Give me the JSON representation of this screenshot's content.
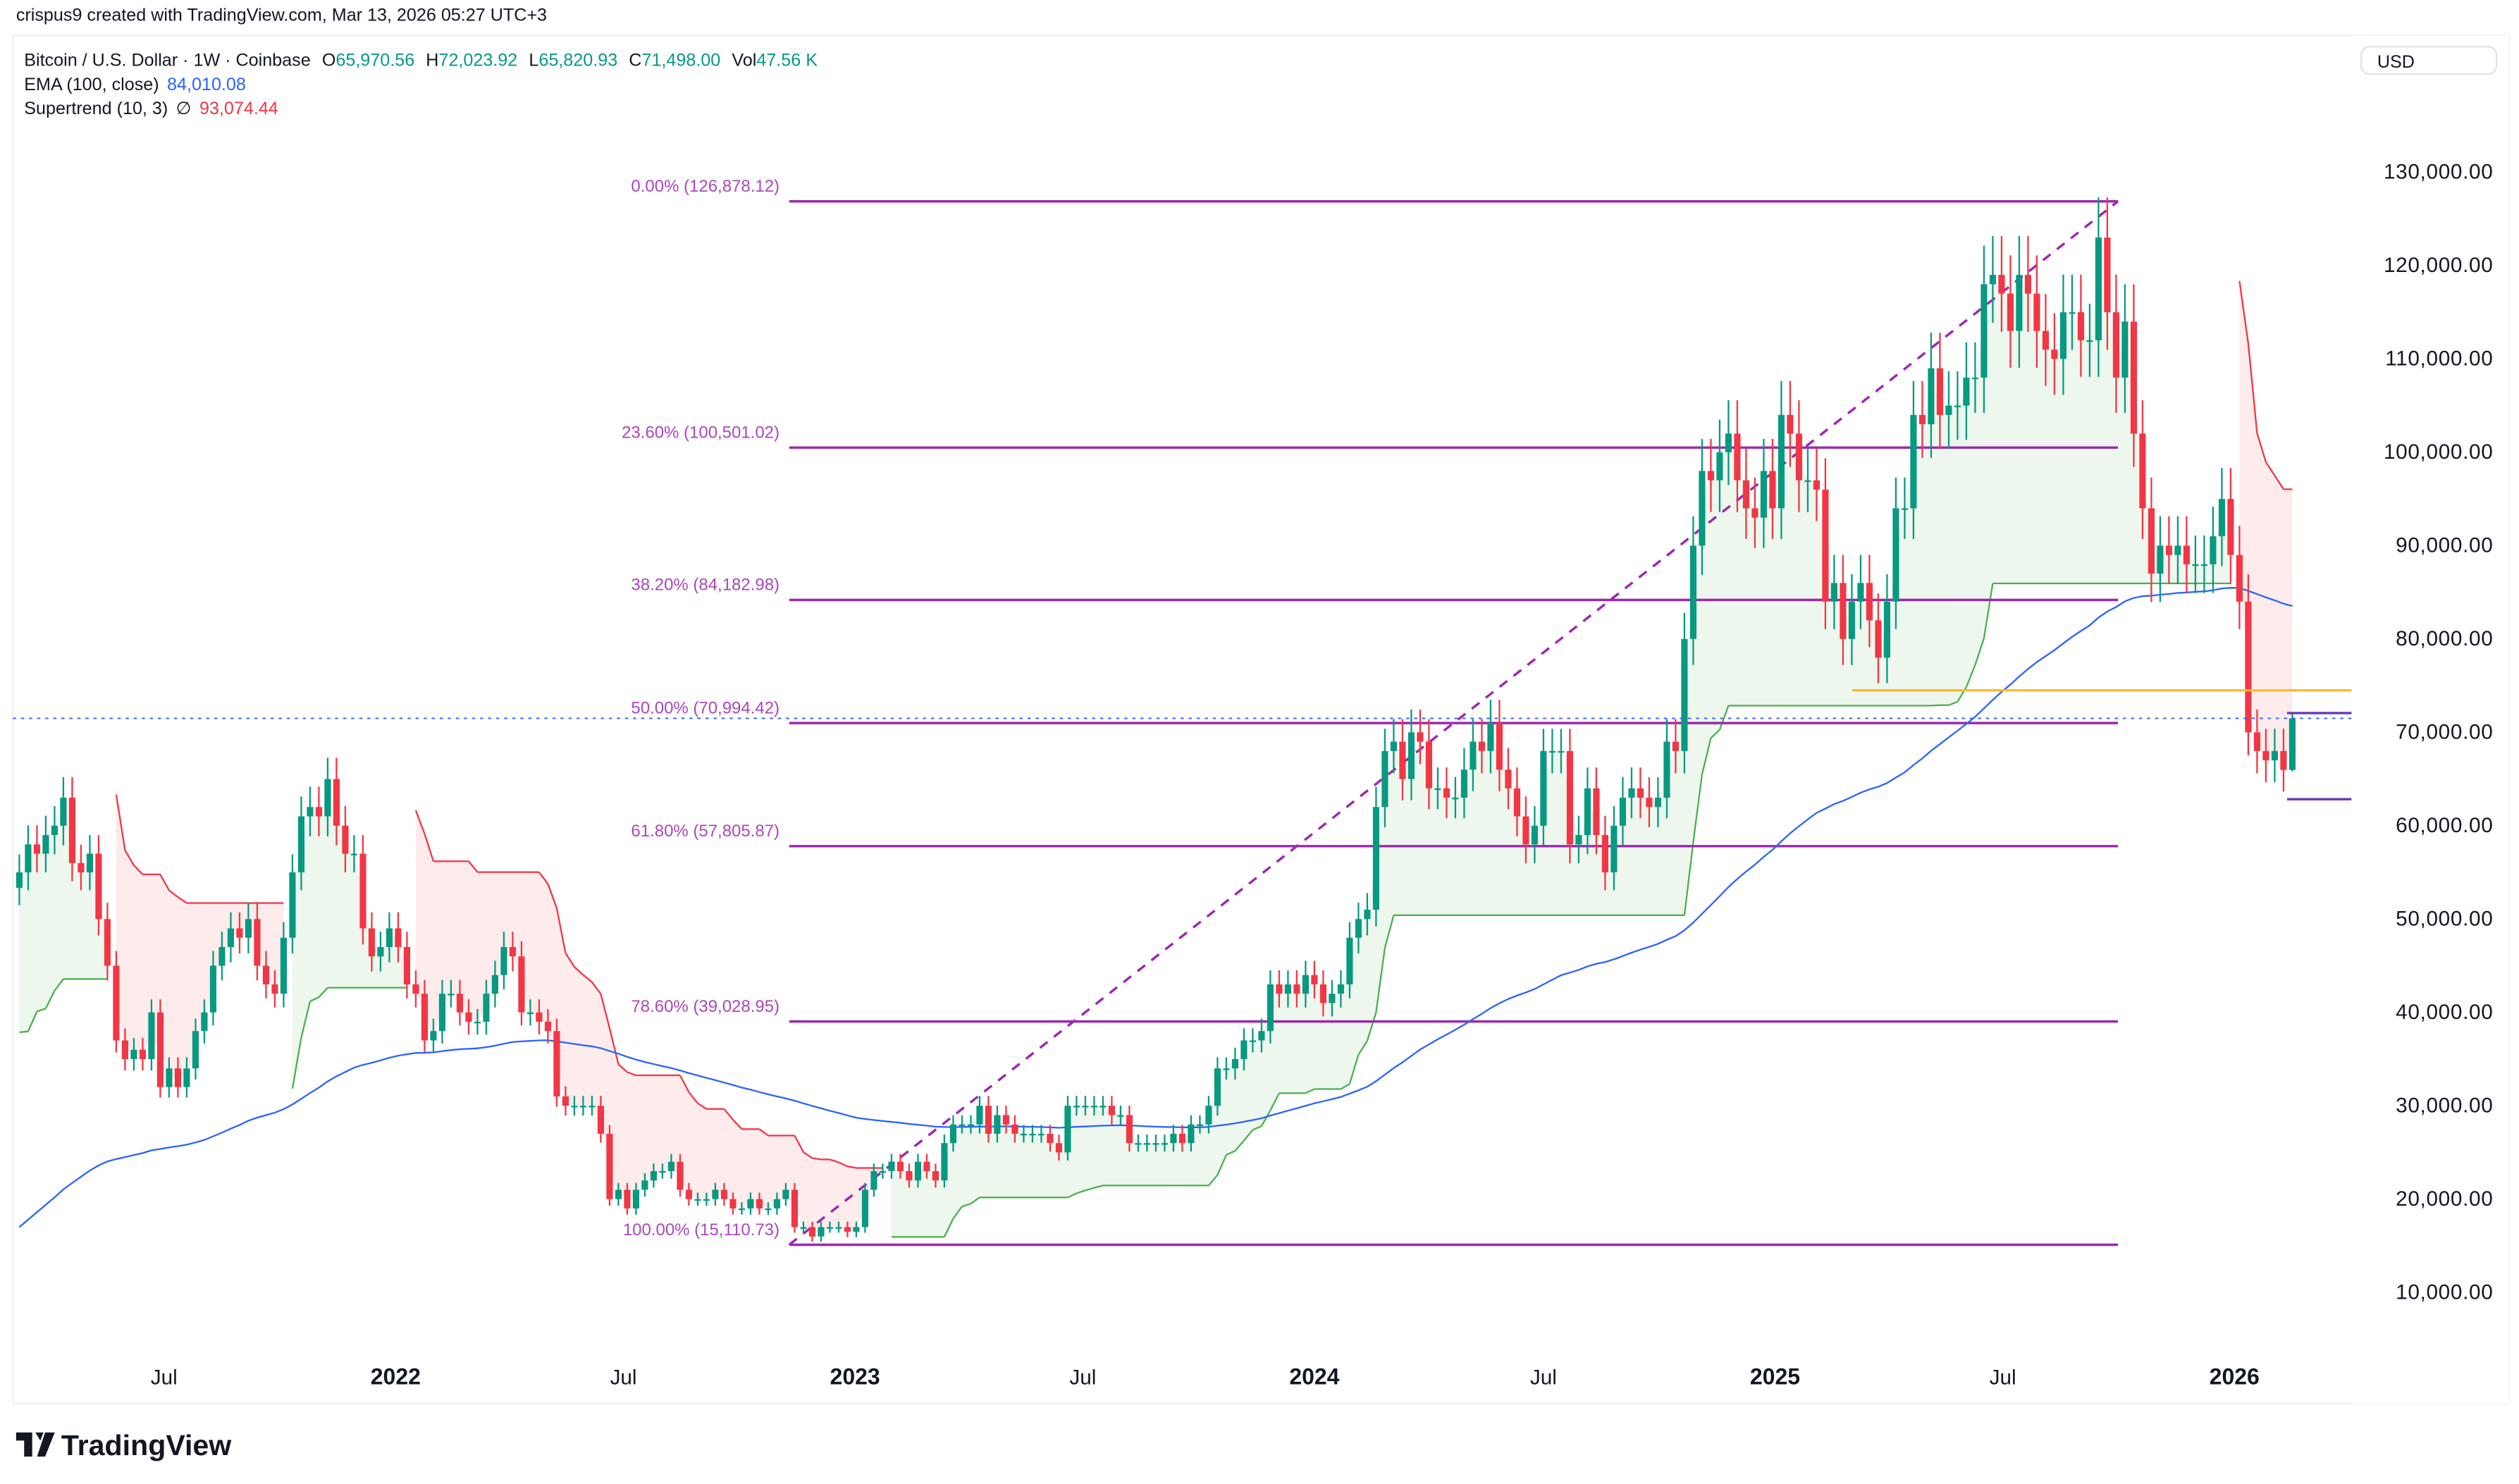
{
  "header": {
    "credit": "crispus9 created with TradingView.com, Mar 13, 2026 05:27 UTC+3"
  },
  "legend": {
    "symbol": "Bitcoin / U.S. Dollar · 1W · Coinbase",
    "o_label": "O",
    "o": "65,970.56",
    "h_label": "H",
    "h": "72,023.92",
    "l_label": "L",
    "l": "65,820.93",
    "c_label": "C",
    "c": "71,498.00",
    "vol_label": "Vol",
    "vol": "47.56 K",
    "ema_label": "EMA (100, close)",
    "ema_value": "84,010.08",
    "st_label": "Supertrend (10, 3)",
    "st_symbol": "∅",
    "st_value": "93,074.44"
  },
  "currency_button": "USD",
  "logo": {
    "text": "TradingView"
  },
  "colors": {
    "up": "#089981",
    "down": "#f23645",
    "ema": "#2962ff",
    "fib": "#9c27b0",
    "fib_text": "#ab47bc",
    "level_orange": "#f9bc2c",
    "level_purple": "#673ab7",
    "st_up": "#4caf50",
    "st_down": "#f23645"
  },
  "chart_data": {
    "type": "candlestick",
    "interval": "1W",
    "first_bar": "2021-03-08",
    "ylim": [
      0,
      140000
    ],
    "y_ticks": [
      "130,000.00",
      "120,000.00",
      "110,000.00",
      "100,000.00",
      "90,000.00",
      "80,000.00",
      "70,000.00",
      "60,000.00",
      "50,000.00",
      "40,000.00",
      "30,000.00",
      "20,000.00",
      "10,000.00"
    ],
    "y_tick_values": [
      130000,
      120000,
      110000,
      100000,
      90000,
      80000,
      70000,
      60000,
      50000,
      40000,
      30000,
      20000,
      10000
    ],
    "x_ticks": [
      {
        "label": "Jul",
        "date": "2021-07-01",
        "bold": false
      },
      {
        "label": "2022",
        "date": "2022-01-01",
        "bold": true
      },
      {
        "label": "Jul",
        "date": "2022-07-01",
        "bold": false
      },
      {
        "label": "2023",
        "date": "2023-01-01",
        "bold": true
      },
      {
        "label": "Jul",
        "date": "2023-07-01",
        "bold": false
      },
      {
        "label": "2024",
        "date": "2024-01-01",
        "bold": true
      },
      {
        "label": "Jul",
        "date": "2024-07-01",
        "bold": false
      },
      {
        "label": "2025",
        "date": "2025-01-01",
        "bold": true
      },
      {
        "label": "Jul",
        "date": "2025-07-01",
        "bold": false
      },
      {
        "label": "2026",
        "date": "2026-01-01",
        "bold": true
      }
    ],
    "closes": [
      55000,
      58000,
      57000,
      59000,
      60000,
      63000,
      56000,
      55000,
      57000,
      50000,
      45000,
      37000,
      35000,
      36000,
      35000,
      40000,
      32000,
      34000,
      32000,
      34000,
      38000,
      40000,
      45000,
      47000,
      49000,
      48000,
      50000,
      45000,
      43000,
      42000,
      48000,
      55000,
      61000,
      62000,
      61000,
      65000,
      60000,
      57000,
      57000,
      49000,
      46000,
      47000,
      49000,
      47000,
      43000,
      42000,
      37000,
      38000,
      42000,
      42000,
      40000,
      39000,
      39000,
      42000,
      44000,
      47000,
      46000,
      40000,
      40000,
      39000,
      38000,
      31000,
      30000,
      30000,
      30000,
      30000,
      27000,
      20000,
      21000,
      19000,
      21000,
      22000,
      23000,
      23000,
      24000,
      21000,
      20000,
      20000,
      20000,
      21000,
      20000,
      19000,
      19000,
      20000,
      19000,
      19000,
      20000,
      21000,
      17000,
      17000,
      16000,
      17000,
      17000,
      17000,
      16500,
      17000,
      21000,
      23000,
      23000,
      24000,
      23000,
      22000,
      24000,
      23000,
      22000,
      26000,
      28000,
      28000,
      28000,
      30000,
      27000,
      29000,
      28000,
      27000,
      27000,
      27000,
      27000,
      26000,
      25000,
      30000,
      30000,
      30000,
      30000,
      30000,
      29000,
      29000,
      26000,
      26000,
      26000,
      26000,
      26000,
      27000,
      26000,
      28000,
      28000,
      30000,
      34000,
      34000,
      35000,
      37000,
      37000,
      38000,
      43000,
      42000,
      43000,
      42000,
      44000,
      43000,
      41000,
      42000,
      43000,
      48000,
      50000,
      51000,
      62000,
      68000,
      69000,
      65000,
      70000,
      69000,
      64000,
      64000,
      63000,
      63000,
      66000,
      69000,
      68000,
      71000,
      66000,
      64000,
      61000,
      58000,
      60000,
      68000,
      68000,
      68000,
      58000,
      59000,
      64000,
      59000,
      55000,
      60000,
      63000,
      64000,
      63000,
      62000,
      63000,
      69000,
      68000,
      80000,
      90000,
      98000,
      97000,
      100000,
      102000,
      97000,
      94000,
      93000,
      98000,
      94000,
      104000,
      102000,
      97000,
      97000,
      96000,
      84000,
      86000,
      80000,
      84000,
      86000,
      82000,
      78000,
      84000,
      94000,
      94000,
      104000,
      103000,
      109000,
      104000,
      105000,
      105000,
      108000,
      108000,
      118000,
      119000,
      117000,
      113000,
      119000,
      117000,
      113000,
      111000,
      110000,
      115000,
      115000,
      112000,
      112000,
      123000,
      115000,
      108000,
      114000,
      102000,
      94000,
      87000,
      90000,
      89000,
      90000,
      88000,
      88000,
      88000,
      91000,
      95000,
      89000,
      84000,
      70000,
      68000,
      67000,
      68000,
      65970.56,
      71498
    ],
    "last_bar": {
      "open": 65970.56,
      "high": 72023.92,
      "low": 65820.93,
      "close": 71498.0
    },
    "fib": {
      "from_price": 15110.73,
      "to_price": 126878.12,
      "levels": [
        {
          "label": "0.00% (126,878.12)",
          "price": 126878.12
        },
        {
          "label": "23.60% (100,501.02)",
          "price": 100501.02
        },
        {
          "label": "38.20% (84,182.98)",
          "price": 84182.98
        },
        {
          "label": "50.00% (70,994.42)",
          "price": 70994.42
        },
        {
          "label": "61.80% (57,805.87)",
          "price": 57805.87
        },
        {
          "label": "78.60% (39,028.95)",
          "price": 39028.95
        },
        {
          "label": "100.00% (15,110.73)",
          "price": 15110.73
        }
      ]
    },
    "price_labels": [
      {
        "text": "74,500.07",
        "price": 74500.07,
        "color": "orange"
      },
      {
        "text": "72,065.72",
        "price": 72065.72,
        "color": "purple"
      },
      {
        "text": "62,838.73",
        "price": 62838.73,
        "color": "purple"
      }
    ]
  }
}
